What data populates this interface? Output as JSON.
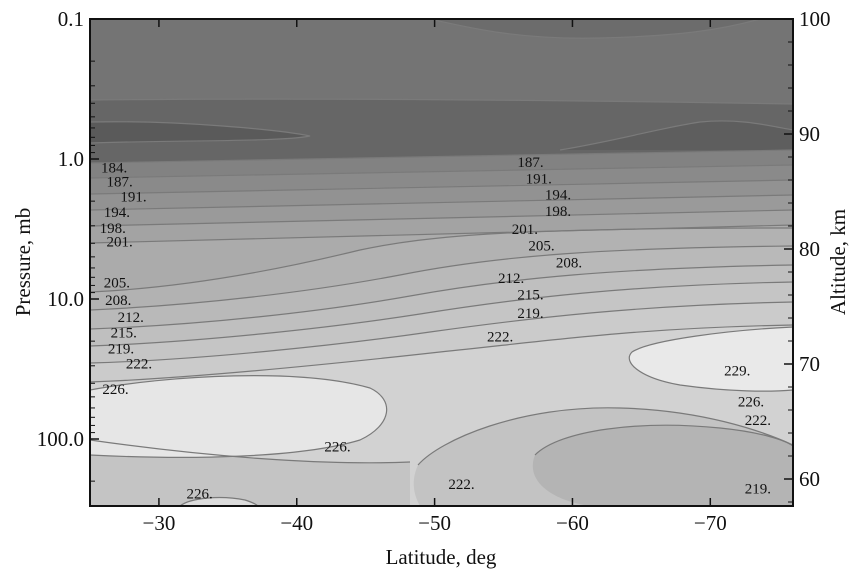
{
  "chart_data": {
    "type": "contour",
    "xlabel": "Latitude, deg",
    "ylabel_left": "Pressure, mb",
    "ylabel_right": "Altitude, km",
    "xlim": [
      -25,
      -76
    ],
    "x_ticks": [
      {
        "value": -30,
        "label": "−30"
      },
      {
        "value": -40,
        "label": "−40"
      },
      {
        "value": -50,
        "label": "−50"
      },
      {
        "value": -60,
        "label": "−60"
      },
      {
        "value": -70,
        "label": "−70"
      }
    ],
    "y_left_scale": "log",
    "y_left_ticks": [
      {
        "value": 0.1,
        "label": "0.1"
      },
      {
        "value": 1.0,
        "label": "1.0"
      },
      {
        "value": 10.0,
        "label": "10.0"
      },
      {
        "value": 100.0,
        "label": "100.0"
      }
    ],
    "y_right_ticks": [
      {
        "value": 100,
        "label": "100"
      },
      {
        "value": 90,
        "label": "90"
      },
      {
        "value": 80,
        "label": "80"
      },
      {
        "value": 70,
        "label": "70"
      },
      {
        "value": 60,
        "label": "60"
      }
    ],
    "contour_labels": [
      {
        "text": "184.",
        "lat": -25.8,
        "p": 1.15
      },
      {
        "text": "187.",
        "lat": -26.2,
        "p": 1.45
      },
      {
        "text": "191.",
        "lat": -27.2,
        "p": 1.85
      },
      {
        "text": "194.",
        "lat": -26.0,
        "p": 2.4
      },
      {
        "text": "198.",
        "lat": -25.7,
        "p": 3.1
      },
      {
        "text": "201.",
        "lat": -26.2,
        "p": 3.9
      },
      {
        "text": "205.",
        "lat": -26.0,
        "p": 7.6
      },
      {
        "text": "208.",
        "lat": -26.1,
        "p": 10.2
      },
      {
        "text": "212.",
        "lat": -27.0,
        "p": 13.4
      },
      {
        "text": "215.",
        "lat": -26.5,
        "p": 17.4
      },
      {
        "text": "219.",
        "lat": -26.3,
        "p": 22.5
      },
      {
        "text": "222.",
        "lat": -27.6,
        "p": 29.0
      },
      {
        "text": "226.",
        "lat": -25.9,
        "p": 44.0
      },
      {
        "text": "226.",
        "lat": -42.0,
        "p": 113.0
      },
      {
        "text": "226.",
        "lat": -32.0,
        "p": 245.0
      },
      {
        "text": "187.",
        "lat": -56.0,
        "p": 1.05
      },
      {
        "text": "191.",
        "lat": -56.6,
        "p": 1.38
      },
      {
        "text": "194.",
        "lat": -58.0,
        "p": 1.8
      },
      {
        "text": "198.",
        "lat": -58.0,
        "p": 2.35
      },
      {
        "text": "201.",
        "lat": -55.6,
        "p": 3.15
      },
      {
        "text": "205.",
        "lat": -56.8,
        "p": 4.15
      },
      {
        "text": "208.",
        "lat": -58.8,
        "p": 5.5
      },
      {
        "text": "212.",
        "lat": -54.6,
        "p": 7.1
      },
      {
        "text": "215.",
        "lat": -56.0,
        "p": 9.3
      },
      {
        "text": "219.",
        "lat": -56.0,
        "p": 12.6
      },
      {
        "text": "222.",
        "lat": -53.8,
        "p": 18.5
      },
      {
        "text": "222.",
        "lat": -51.0,
        "p": 210.0
      },
      {
        "text": "229.",
        "lat": -71.0,
        "p": 32.5
      },
      {
        "text": "226.",
        "lat": -72.0,
        "p": 54.0
      },
      {
        "text": "222.",
        "lat": -72.5,
        "p": 73.0
      },
      {
        "text": "219.",
        "lat": -72.5,
        "p": 225.0
      }
    ]
  }
}
